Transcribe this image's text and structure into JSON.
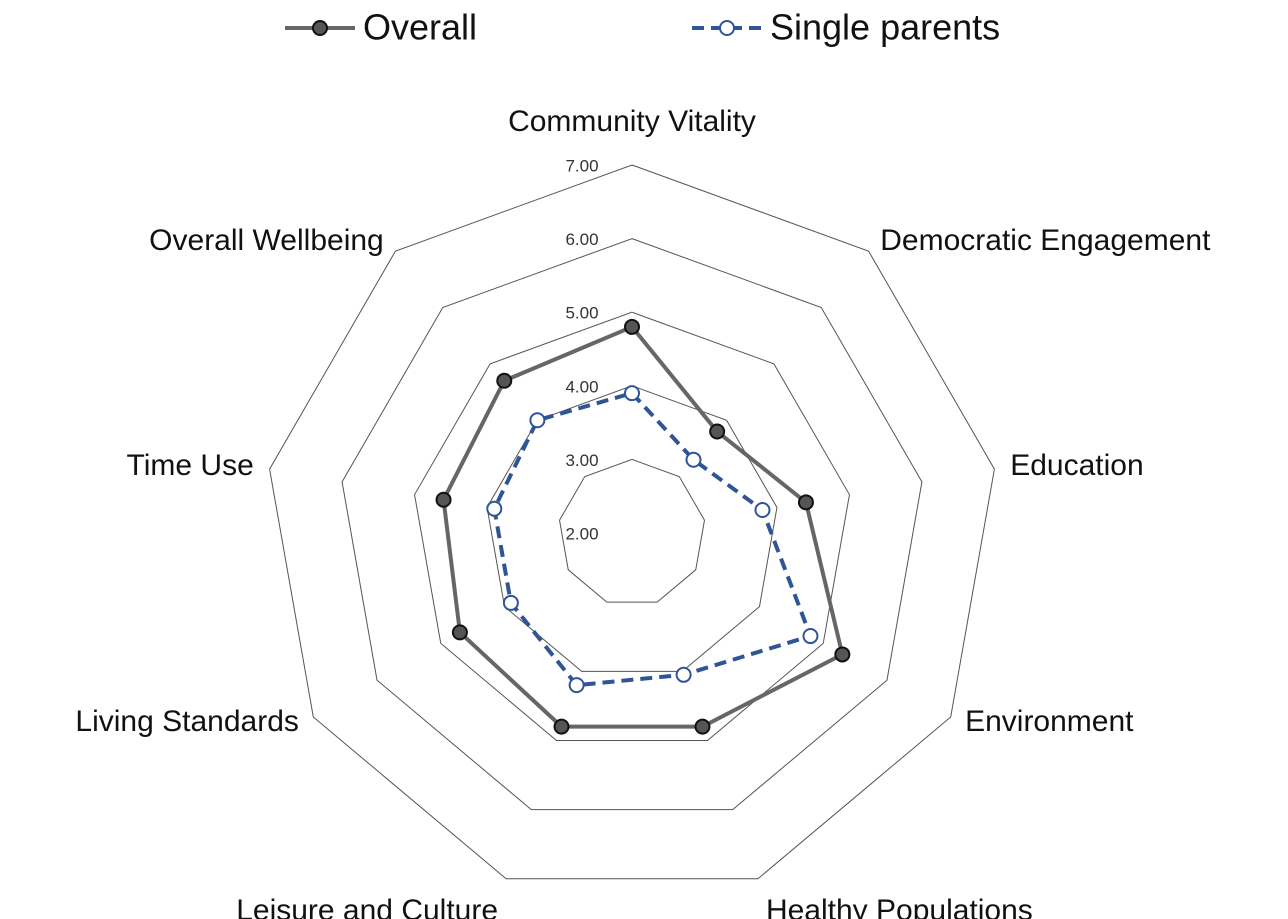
{
  "chart_data": {
    "type": "radar",
    "categories": [
      "Community Vitality",
      "Democratic Engagement",
      "Education",
      "Environment",
      "Healthy Populations",
      "Leisure and Culture",
      "Living Standards",
      "Time Use",
      "Overall Wellbeing"
    ],
    "series": [
      {
        "name": "Overall",
        "color": "#666666",
        "values": [
          4.8,
          3.8,
          4.4,
          5.3,
          4.8,
          4.8,
          4.7,
          4.6,
          4.7
        ]
      },
      {
        "name": "Single parents",
        "color": "#2f5597",
        "values": [
          3.9,
          3.3,
          3.8,
          4.8,
          4.05,
          4.2,
          3.9,
          3.9,
          4.0
        ]
      }
    ],
    "rlim": [
      2,
      7
    ],
    "rticks": [
      {
        "value": 2,
        "label": "2.00"
      },
      {
        "value": 3,
        "label": "3.00"
      },
      {
        "value": 4,
        "label": "4.00"
      },
      {
        "value": 5,
        "label": "5.00"
      },
      {
        "value": 6,
        "label": "6.00"
      },
      {
        "value": 7,
        "label": "7.00"
      }
    ],
    "legend": "top"
  }
}
